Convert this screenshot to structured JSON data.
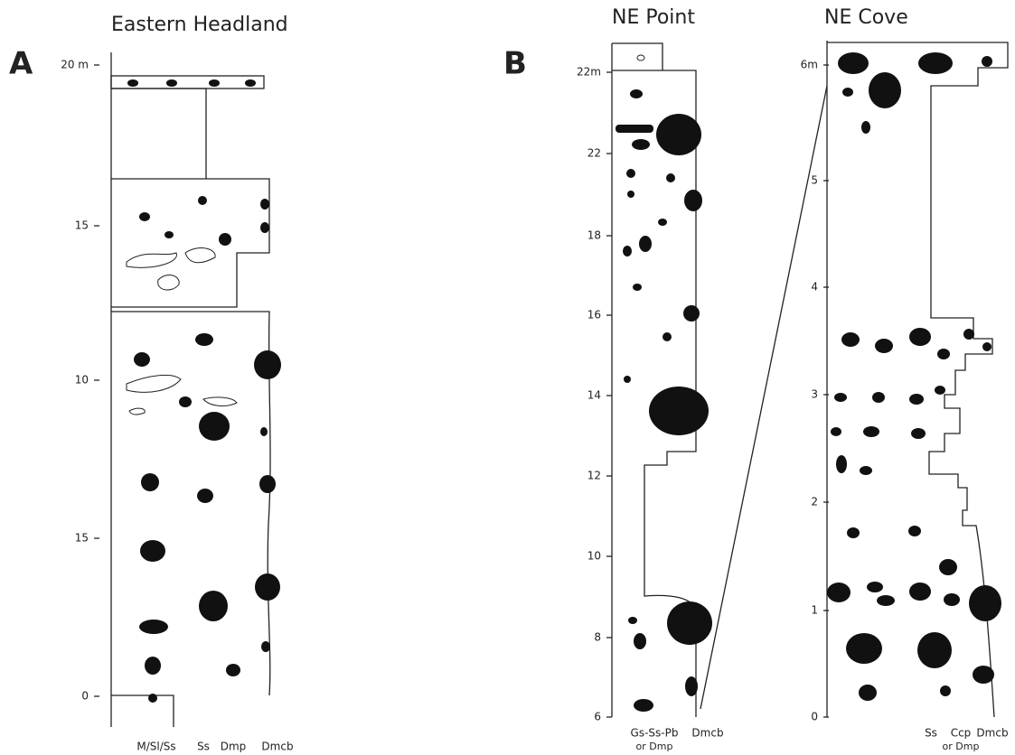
{
  "panels": [
    {
      "label": "A",
      "columns": [
        {
          "title": "Eastern Headland",
          "axis_labels": [
            "20 m",
            "15",
            "10",
            "15",
            "0"
          ],
          "grain_labels": [
            [
              "M/Sl/Ss"
            ],
            [
              "Ss"
            ],
            [
              "Dmp"
            ],
            [
              "Dmcb"
            ]
          ]
        }
      ]
    },
    {
      "label": "B",
      "columns": [
        {
          "title": "NE Point",
          "axis_labels": [
            "22m",
            "22",
            "18",
            "16",
            "14",
            "12",
            "10",
            "8",
            "6"
          ],
          "grain_labels": [
            [
              "Gs-Ss-Pb",
              "or Dmp"
            ],
            [
              "Dmcb"
            ]
          ]
        },
        {
          "title": "NE Cove",
          "axis_labels": [
            "6m",
            "5",
            "4",
            "3",
            "2",
            "1",
            "0"
          ],
          "grain_labels": [
            [
              "Ss"
            ],
            [
              "Ccp",
              "or Dmp"
            ],
            [
              "Dmcb"
            ]
          ]
        }
      ]
    }
  ]
}
